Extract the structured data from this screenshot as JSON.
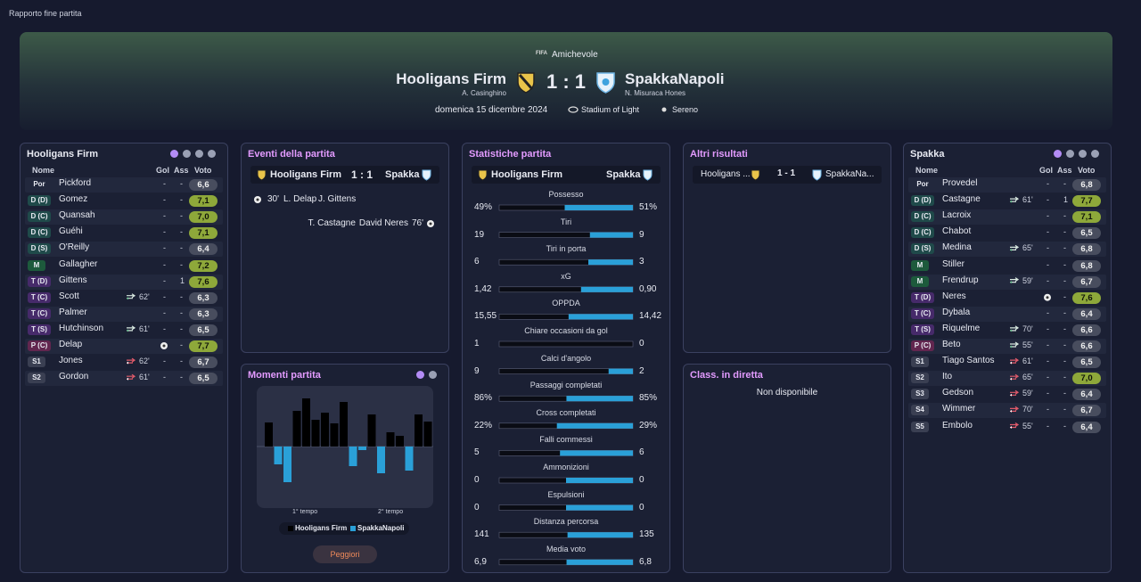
{
  "window_title": "Rapporto fine partita",
  "header": {
    "competition_logo": "FIFA",
    "competition": "Amichevole",
    "home_team": "Hooligans Firm",
    "home_manager": "A. Casinghino",
    "score": "1 : 1",
    "away_team": "SpakkaNapoli",
    "away_manager": "N. Misuraca Hones",
    "date": "domenica 15 dicembre 2024",
    "stadium": "Stadium of Light",
    "weather": "Sereno"
  },
  "home_lineup": {
    "title": "Hooligans Firm",
    "columns": [
      "Nome",
      "Gol",
      "Ass",
      "Voto"
    ],
    "rows": [
      {
        "pos": "Por",
        "name": "Pickford",
        "gol": "-",
        "ass": "-",
        "voto": "6,6"
      },
      {
        "pos": "D (D)",
        "name": "Gomez",
        "gol": "-",
        "ass": "-",
        "voto": "7,1"
      },
      {
        "pos": "D (C)",
        "name": "Quansah",
        "gol": "-",
        "ass": "-",
        "voto": "7,0"
      },
      {
        "pos": "D (C)",
        "name": "Guéhi",
        "gol": "-",
        "ass": "-",
        "voto": "7,1"
      },
      {
        "pos": "D (S)",
        "name": "O'Reilly",
        "gol": "-",
        "ass": "-",
        "voto": "6,4"
      },
      {
        "pos": "M",
        "name": "Gallagher",
        "gol": "-",
        "ass": "-",
        "voto": "7,2"
      },
      {
        "pos": "T (D)",
        "name": "Gittens",
        "gol": "-",
        "ass": "1",
        "voto": "7,6"
      },
      {
        "pos": "T (C)",
        "name": "Scott",
        "sub": "62'",
        "gol": "-",
        "ass": "-",
        "voto": "6,3"
      },
      {
        "pos": "T (C)",
        "name": "Palmer",
        "gol": "-",
        "ass": "-",
        "voto": "6,3"
      },
      {
        "pos": "T (S)",
        "name": "Hutchinson",
        "sub": "61'",
        "gol": "-",
        "ass": "-",
        "voto": "6,5"
      },
      {
        "pos": "P (C)",
        "name": "Delap",
        "goal": true,
        "ass": "-",
        "voto": "7,7"
      },
      {
        "pos": "S1",
        "name": "Jones",
        "sub": "62'",
        "gol": "-",
        "ass": "-",
        "voto": "6,7"
      },
      {
        "pos": "S2",
        "name": "Gordon",
        "sub": "61'",
        "gol": "-",
        "ass": "-",
        "voto": "6,5"
      }
    ]
  },
  "events": {
    "title": "Eventi della partita",
    "home": "Hooligans Firm",
    "score": "1 : 1",
    "away": "Spakka",
    "items": [
      {
        "side": "home",
        "minute": "30'",
        "scorer": "L. Delap",
        "assist": "J. Gittens"
      },
      {
        "side": "away",
        "minute": "76'",
        "scorer": "David Neres",
        "assist": "T. Castagne"
      }
    ]
  },
  "momenti": {
    "title": "Momenti partita",
    "first_half": "1° tempo",
    "second_half": "2° tempo",
    "button": "Peggiori",
    "chart": {
      "type": "bar",
      "series": [
        {
          "name": "Hooligans Firm",
          "color": "#000000",
          "values": [
            27,
            0,
            0,
            40,
            54,
            30,
            38,
            26,
            50,
            0,
            0,
            36,
            0,
            16,
            12,
            0,
            36,
            28
          ]
        },
        {
          "name": "SpakkaNapoli",
          "color": "#2aa0d8",
          "values": [
            0,
            20,
            40,
            0,
            0,
            0,
            0,
            0,
            0,
            22,
            4,
            0,
            30,
            0,
            0,
            27,
            0,
            0
          ]
        }
      ]
    }
  },
  "stats": {
    "title": "Statistiche partita",
    "home": "Hooligans Firm",
    "away": "Spakka",
    "rows": [
      {
        "name": "Possesso",
        "home": 49,
        "away": 51,
        "home_label": "49%",
        "away_label": "51%"
      },
      {
        "name": "Tiri",
        "home": 19,
        "away": 9
      },
      {
        "name": "Tiri in porta",
        "home": 6,
        "away": 3
      },
      {
        "name": "xG",
        "home": 1.42,
        "away": 0.9,
        "home_label": "1,42",
        "away_label": "0,90"
      },
      {
        "name": "OPPDA",
        "home": 15.55,
        "away": 14.42,
        "home_label": "15,55",
        "away_label": "14,42"
      },
      {
        "name": "Chiare occasioni da gol",
        "home": 1,
        "away": 0
      },
      {
        "name": "Calci d'angolo",
        "home": 9,
        "away": 2
      },
      {
        "name": "Passaggi completati",
        "home": 86,
        "away": 85,
        "home_label": "86%",
        "away_label": "85%"
      },
      {
        "name": "Cross completati",
        "home": 22,
        "away": 29,
        "home_label": "22%",
        "away_label": "29%"
      },
      {
        "name": "Falli commessi",
        "home": 5,
        "away": 6
      },
      {
        "name": "Ammonizioni",
        "home": 0,
        "away": 0
      },
      {
        "name": "Espulsioni",
        "home": 0,
        "away": 0
      },
      {
        "name": "Distanza percorsa",
        "home": 141,
        "away": 135
      },
      {
        "name": "Media voto",
        "home": 6.9,
        "away": 6.8,
        "home_label": "6,9",
        "away_label": "6,8"
      }
    ]
  },
  "other_results": {
    "title": "Altri risultati",
    "items": [
      {
        "home": "Hooligans ...",
        "score": "1 - 1",
        "away": "SpakkaNa..."
      }
    ]
  },
  "live_table": {
    "title": "Class. in diretta",
    "message": "Non disponibile"
  },
  "away_lineup": {
    "title": "Spakka",
    "columns": [
      "Nome",
      "Gol",
      "Ass",
      "Voto"
    ],
    "rows": [
      {
        "pos": "Por",
        "name": "Provedel",
        "gol": "-",
        "ass": "-",
        "voto": "6,8"
      },
      {
        "pos": "D (D)",
        "name": "Castagne",
        "sub": "61'",
        "gol": "-",
        "ass": "1",
        "voto": "7,7"
      },
      {
        "pos": "D (C)",
        "name": "Lacroix",
        "gol": "-",
        "ass": "-",
        "voto": "7,1"
      },
      {
        "pos": "D (C)",
        "name": "Chabot",
        "gol": "-",
        "ass": "-",
        "voto": "6,5"
      },
      {
        "pos": "D (S)",
        "name": "Medina",
        "sub": "65'",
        "gol": "-",
        "ass": "-",
        "voto": "6,8"
      },
      {
        "pos": "M",
        "name": "Stiller",
        "gol": "-",
        "ass": "-",
        "voto": "6,8"
      },
      {
        "pos": "M",
        "name": "Frendrup",
        "sub": "59'",
        "gol": "-",
        "ass": "-",
        "voto": "6,7"
      },
      {
        "pos": "T (D)",
        "name": "Neres",
        "goal": true,
        "ass": "-",
        "voto": "7,6"
      },
      {
        "pos": "T (C)",
        "name": "Dybala",
        "gol": "-",
        "ass": "-",
        "voto": "6,4"
      },
      {
        "pos": "T (S)",
        "name": "Riquelme",
        "sub": "70'",
        "gol": "-",
        "ass": "-",
        "voto": "6,6"
      },
      {
        "pos": "P (C)",
        "name": "Beto",
        "sub": "55'",
        "gol": "-",
        "ass": "-",
        "voto": "6,6"
      },
      {
        "pos": "S1",
        "name": "Tiago Santos",
        "sub": "61'",
        "gol": "-",
        "ass": "-",
        "voto": "6,5"
      },
      {
        "pos": "S2",
        "name": "Ito",
        "sub": "65'",
        "gol": "-",
        "ass": "-",
        "voto": "7,0"
      },
      {
        "pos": "S3",
        "name": "Gedson",
        "sub": "59'",
        "gol": "-",
        "ass": "-",
        "voto": "6,4"
      },
      {
        "pos": "S4",
        "name": "Wimmer",
        "sub": "70'",
        "gol": "-",
        "ass": "-",
        "voto": "6,7"
      },
      {
        "pos": "S5",
        "name": "Embolo",
        "sub": "55'",
        "gol": "-",
        "ass": "-",
        "voto": "6,4"
      }
    ]
  }
}
